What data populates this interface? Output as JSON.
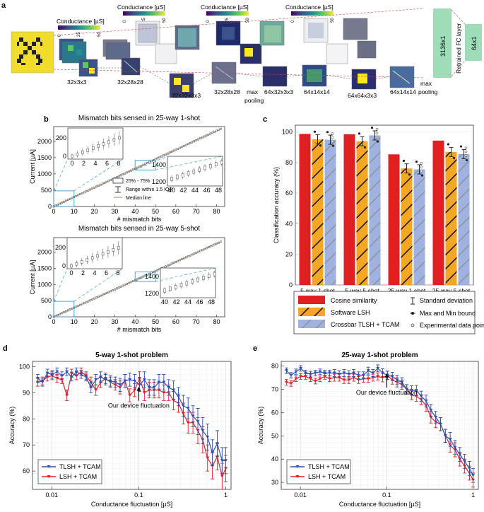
{
  "figure": {
    "panel_labels": {
      "a": "a",
      "b": "b",
      "c": "c",
      "d": "d",
      "e": "e"
    }
  },
  "panel_a": {
    "colorbar_title": "Conductance [µS]",
    "colorbar_ticks": [
      "0",
      "25",
      "50"
    ],
    "stage_labels": [
      "32x3x3",
      "32x28x28",
      "32x32x3x3",
      "32x28x28",
      "64x32x3x3",
      "64x14x14",
      "64x64x3x3",
      "64x14x14"
    ],
    "pool_label_1": "max",
    "pool_label_1b": "pooling",
    "pool_label_2": "max",
    "pool_label_2b": "pooling",
    "fc_labels": [
      "3136x1",
      "Retrained FC layer",
      "64x1"
    ],
    "colors": {
      "fc": "#9fdcb8",
      "input_bg": "#f2dd2d"
    }
  },
  "panel_b": [
    {
      "title": "Mismatch bits sensed in 25-way 1-shot",
      "xlabel": "# mismatch bits",
      "ylabel": "Current [µA]",
      "x_ticks": [
        "0",
        "10",
        "20",
        "30",
        "40",
        "50",
        "60",
        "70",
        "80"
      ],
      "y_ticks": [
        "0",
        "500",
        "1000",
        "1500",
        "2000"
      ],
      "inset1_yticks": [
        "0",
        "200"
      ],
      "inset1_xticks": [
        "0",
        "2",
        "4",
        "6",
        "8"
      ],
      "inset2_yticks": [
        "1200",
        "1400"
      ],
      "inset2_xticks": [
        "40",
        "42",
        "44",
        "46",
        "48"
      ],
      "legend": [
        "25% - 75%",
        "Range within 1.5 IQR",
        "Median line"
      ]
    },
    {
      "title": "Mismatch bits sensed in 25-way 5-shot",
      "xlabel": "# mismatch bits",
      "ylabel": "Current [µA]",
      "x_ticks": [
        "0",
        "10",
        "20",
        "30",
        "40",
        "50",
        "60",
        "70",
        "80"
      ],
      "y_ticks": [
        "0",
        "500",
        "1000",
        "1500",
        "2000"
      ],
      "inset1_yticks": [
        "0",
        "200"
      ],
      "inset1_xticks": [
        "0",
        "2",
        "4",
        "6",
        "8"
      ],
      "inset2_yticks": [
        "1200",
        "1400"
      ],
      "inset2_xticks": [
        "40",
        "42",
        "44",
        "46",
        "48"
      ]
    }
  ],
  "chart_data": [
    {
      "type": "bar",
      "title": "",
      "ylabel": "Classification accuracy (%)",
      "ylim": [
        0,
        100
      ],
      "y_ticks": [
        "0",
        "20",
        "40",
        "60",
        "80",
        "100"
      ],
      "categories": [
        "5-way 1-shot",
        "5-way 5-shot",
        "25-way 1-shot",
        "25-way 5-shot"
      ],
      "series": [
        {
          "name": "Cosine similarity",
          "color": "#e02020",
          "values": [
            98.8,
            98.6,
            85.4,
            94.4
          ]
        },
        {
          "name": "Software LSH",
          "color": "#f5a623",
          "values": [
            95.2,
            94.0,
            76.2,
            87.0
          ]
        },
        {
          "name": "Crossbar TLSH + TCAM",
          "color": "#9fb2e0",
          "values": [
            95.0,
            97.8,
            75.6,
            85.6
          ]
        }
      ],
      "legend": [
        "Cosine similarity",
        "Standard deviation",
        "Software LSH",
        "Max and Min bound",
        "Crossbar TLSH + TCAM",
        "Experimental data point"
      ]
    },
    {
      "type": "line",
      "title": "5-way 1-shot problem",
      "xlabel": "Conductance fluctuation [µS]",
      "ylabel": "Accuracy (%)",
      "xscale": "log",
      "xlim": [
        0.006,
        1.15
      ],
      "ylim": [
        53,
        102
      ],
      "x_ticks": [
        "0.01",
        "0.1",
        "1"
      ],
      "y_ticks": [
        "60",
        "70",
        "80",
        "90",
        "100"
      ],
      "annotation": "Our device fluctuation",
      "annotation_x": 0.1,
      "series": [
        {
          "name": "TLSH + TCAM",
          "color": "#2c4fb0",
          "x": [
            0.0069,
            0.0078,
            0.0089,
            0.0101,
            0.0115,
            0.0131,
            0.0149,
            0.0169,
            0.0192,
            0.0218,
            0.0248,
            0.0282,
            0.0321,
            0.0365,
            0.0415,
            0.0472,
            0.0537,
            0.061,
            0.0694,
            0.0789,
            0.0897,
            0.102,
            0.116,
            0.1319,
            0.15,
            0.1706,
            0.194,
            0.2206,
            0.2509,
            0.2853,
            0.3245,
            0.369,
            0.4196,
            0.4772,
            0.5427,
            0.6172,
            0.7019,
            0.7982,
            0.9078,
            1.0
          ],
          "y": [
            95.5,
            94.0,
            97.5,
            97.0,
            98.0,
            96.5,
            98.0,
            96.0,
            98.0,
            97.0,
            96.0,
            92.0,
            95.0,
            96.0,
            95.0,
            94.5,
            94.0,
            93.0,
            94.5,
            95.0,
            94.5,
            93.0,
            95.0,
            92.0,
            92.0,
            94.0,
            94.0,
            92.0,
            91.0,
            88.5,
            85.0,
            84.0,
            81.0,
            79.0,
            75.5,
            73.0,
            67.0,
            70.5,
            64.0,
            64.0
          ],
          "err": [
            1.5,
            1.5,
            1.5,
            1.5,
            1.5,
            1.5,
            1.5,
            1.5,
            1.5,
            1.5,
            1.5,
            2,
            2,
            2,
            2,
            2,
            2,
            2.5,
            2.5,
            2.5,
            2.5,
            2.5,
            3,
            3,
            3,
            3,
            3,
            3,
            3.5,
            3.5,
            4,
            4,
            4,
            5,
            5,
            5,
            5,
            5,
            5,
            5
          ]
        },
        {
          "name": "LSH + TCAM",
          "color": "#e0202a",
          "x": [
            0.0069,
            0.0078,
            0.0089,
            0.0101,
            0.0115,
            0.0131,
            0.0149,
            0.0169,
            0.0192,
            0.0218,
            0.0248,
            0.0282,
            0.0321,
            0.0365,
            0.0415,
            0.0472,
            0.0537,
            0.061,
            0.0694,
            0.0789,
            0.0897,
            0.102,
            0.116,
            0.1319,
            0.15,
            0.1706,
            0.194,
            0.2206,
            0.2509,
            0.2853,
            0.3245,
            0.369,
            0.4196,
            0.4772,
            0.5427,
            0.6172,
            0.7019,
            0.7982,
            0.9078,
            1.0
          ],
          "y": [
            94.0,
            94.5,
            96.0,
            96.5,
            95.5,
            95.0,
            89.0,
            97.5,
            96.5,
            98.0,
            96.5,
            94.0,
            91.0,
            94.0,
            95.5,
            94.0,
            93.0,
            92.0,
            94.5,
            89.0,
            91.0,
            95.5,
            90.0,
            91.0,
            91.0,
            91.0,
            90.0,
            90.0,
            87.0,
            86.0,
            82.0,
            78.5,
            78.5,
            75.5,
            72.0,
            65.0,
            62.0,
            65.5,
            58.0,
            61.0
          ],
          "err": [
            1.5,
            1.5,
            1.5,
            1.5,
            1.5,
            1.5,
            2,
            1.5,
            1.5,
            1.5,
            1.5,
            2,
            2,
            2,
            2,
            2,
            2,
            2.5,
            2.5,
            2.5,
            2.5,
            2.5,
            3,
            3,
            3,
            3,
            3,
            3,
            3.5,
            3.5,
            4,
            4,
            4,
            5,
            5,
            5,
            5,
            5,
            5,
            5
          ]
        }
      ]
    },
    {
      "type": "line",
      "title": "25-way 1-shot problem",
      "xlabel": "Conductance fluctuation [µS]",
      "ylabel": "Accuracy (%)",
      "xscale": "log",
      "xlim": [
        0.006,
        1.15
      ],
      "ylim": [
        27,
        82
      ],
      "x_ticks": [
        "0.01",
        "0.1",
        "1"
      ],
      "y_ticks": [
        "30",
        "40",
        "50",
        "60",
        "70",
        "80"
      ],
      "annotation": "Our device fluctuation",
      "annotation_x": 0.1,
      "series": [
        {
          "name": "TLSH + TCAM",
          "color": "#2c4fb0",
          "x": [
            0.0069,
            0.0078,
            0.0089,
            0.0101,
            0.0115,
            0.0131,
            0.0149,
            0.0169,
            0.0192,
            0.0218,
            0.0248,
            0.0282,
            0.0321,
            0.0365,
            0.0415,
            0.0472,
            0.0537,
            0.061,
            0.0694,
            0.0789,
            0.0897,
            0.102,
            0.116,
            0.1319,
            0.15,
            0.1706,
            0.194,
            0.2206,
            0.2509,
            0.2853,
            0.3245,
            0.369,
            0.4196,
            0.4772,
            0.5427,
            0.6172,
            0.7019,
            0.7982,
            0.9078,
            1.0
          ],
          "y": [
            78.0,
            76.0,
            77.5,
            79.0,
            77.0,
            76.5,
            77.0,
            77.5,
            77.0,
            77.0,
            77.0,
            76.5,
            77.0,
            76.5,
            77.0,
            76.0,
            76.0,
            78.0,
            77.0,
            79.0,
            77.0,
            76.0,
            75.5,
            74.0,
            73.0,
            70.0,
            69.5,
            69.5,
            67.0,
            65.0,
            61.0,
            58.0,
            55.0,
            50.0,
            48.5,
            45.0,
            42.0,
            39.0,
            36.0,
            33.0
          ],
          "err": [
            1.2,
            1.2,
            1.2,
            1.2,
            1.2,
            1.2,
            1.2,
            1.2,
            1.2,
            1.2,
            1.5,
            1.5,
            1.5,
            1.5,
            1.5,
            1.5,
            1.5,
            1.5,
            1.5,
            1.5,
            1.8,
            1.8,
            1.8,
            2,
            2,
            2,
            2,
            2.2,
            2.2,
            2.5,
            2.5,
            2.5,
            2.8,
            2.8,
            3,
            3,
            3,
            3,
            3,
            3
          ]
        },
        {
          "name": "LSH + TCAM",
          "color": "#e0202a",
          "x": [
            0.0069,
            0.0078,
            0.0089,
            0.0101,
            0.0115,
            0.0131,
            0.0149,
            0.0169,
            0.0192,
            0.0218,
            0.0248,
            0.0282,
            0.0321,
            0.0365,
            0.0415,
            0.0472,
            0.0537,
            0.061,
            0.0694,
            0.0789,
            0.0897,
            0.102,
            0.116,
            0.1319,
            0.15,
            0.1706,
            0.194,
            0.2206,
            0.2509,
            0.2853,
            0.3245,
            0.369,
            0.4196,
            0.4772,
            0.5427,
            0.6172,
            0.7019,
            0.7982,
            0.9078,
            1.0
          ],
          "y": [
            73.0,
            72.5,
            74.5,
            75.5,
            75.5,
            74.5,
            73.5,
            74.5,
            75.5,
            74.5,
            75.0,
            75.0,
            74.0,
            74.0,
            75.0,
            74.0,
            74.5,
            74.5,
            75.0,
            75.5,
            75.0,
            76.0,
            74.0,
            73.0,
            72.0,
            70.0,
            67.5,
            67.0,
            65.5,
            63.0,
            58.0,
            56.0,
            55.0,
            50.0,
            46.0,
            44.0,
            40.0,
            37.0,
            34.0,
            31.0
          ],
          "err": [
            1.2,
            1.2,
            1.2,
            1.2,
            1.2,
            1.2,
            1.2,
            1.2,
            1.2,
            1.2,
            1.5,
            1.5,
            1.5,
            1.5,
            1.5,
            1.5,
            1.5,
            1.5,
            1.5,
            1.5,
            1.8,
            1.8,
            1.8,
            2,
            2,
            2,
            2,
            2.2,
            2.2,
            2.5,
            2.5,
            2.5,
            2.8,
            2.8,
            3,
            3,
            3,
            3,
            3,
            3
          ]
        }
      ]
    }
  ]
}
